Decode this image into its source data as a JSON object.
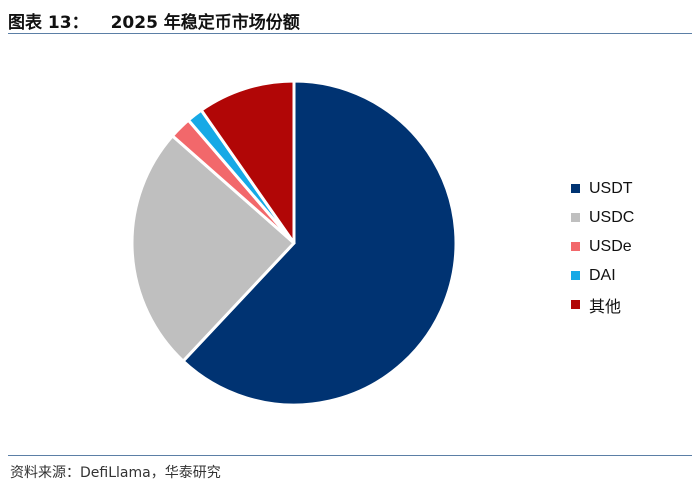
{
  "header": {
    "figure_label": "图表 13：",
    "title": "2025 年稳定币市场份额"
  },
  "footer": {
    "source": "资料来源：DefiLlama，华泰研究"
  },
  "chart_data": {
    "type": "pie",
    "title": "2025 年稳定币市场份额",
    "legend_position": "right",
    "slices": [
      {
        "label": "USDT",
        "value": 62.0,
        "color": "#003372"
      },
      {
        "label": "USDC",
        "value": 24.5,
        "color": "#bfbfbf"
      },
      {
        "label": "USDe",
        "value": 2.2,
        "color": "#f2686b"
      },
      {
        "label": "DAI",
        "value": 1.6,
        "color": "#16a9e6"
      },
      {
        "label": "其他",
        "value": 9.7,
        "color": "#b10606"
      }
    ]
  }
}
